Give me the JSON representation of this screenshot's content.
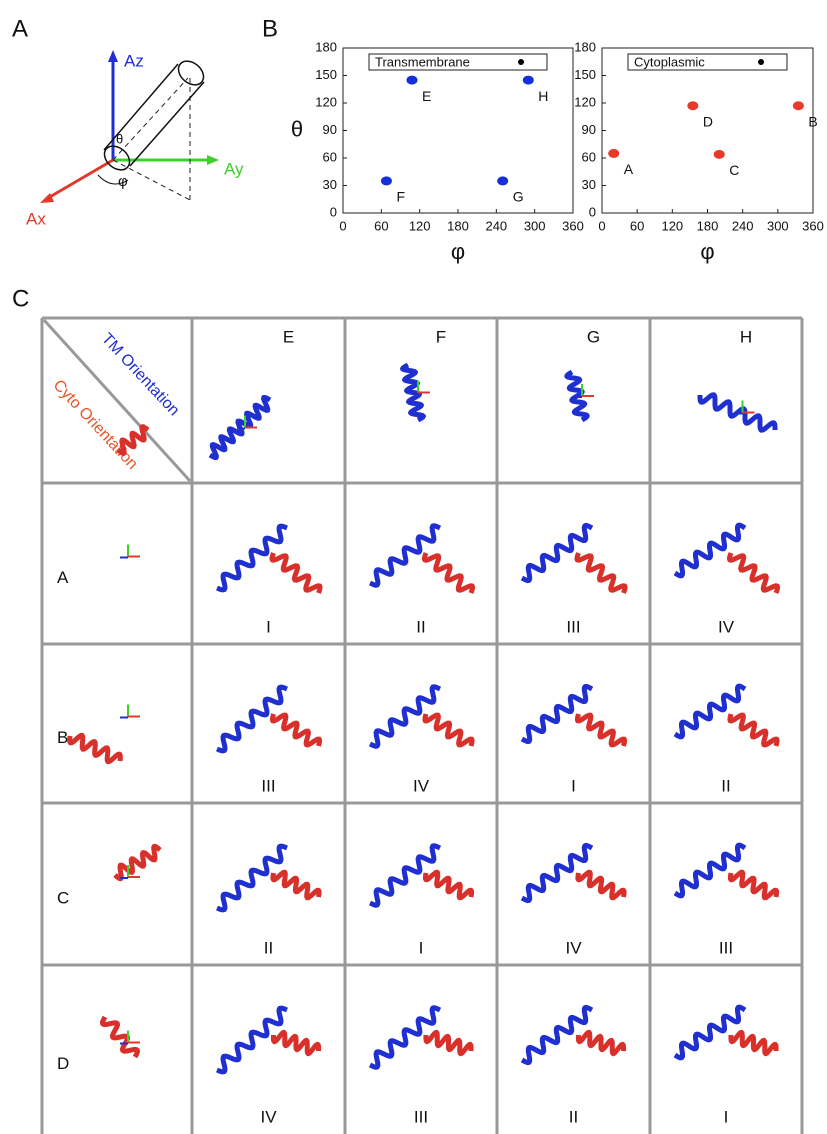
{
  "panels": [
    "A",
    "B",
    "C"
  ],
  "diagram": {
    "axis_labels": [
      "Az",
      "Ay",
      "Ax"
    ],
    "angle_labels": [
      "θ",
      "φ"
    ]
  },
  "chart_data": [
    {
      "type": "scatter",
      "x_label": "φ",
      "y_label": "θ",
      "xlim": [
        0,
        360
      ],
      "xticks": [
        0,
        60,
        120,
        180,
        240,
        300,
        360
      ],
      "ylim": [
        0,
        180
      ],
      "yticks": [
        0,
        30,
        60,
        90,
        120,
        150,
        180
      ],
      "legend": "top",
      "series": [
        {
          "name": "Transmembrane",
          "color": "#1530d8",
          "x": [
            108,
            68,
            250,
            290
          ],
          "values": [
            145,
            35,
            35,
            145
          ],
          "point_labels": [
            "E",
            "F",
            "G",
            "H"
          ]
        }
      ]
    },
    {
      "type": "scatter",
      "x_label": "φ",
      "y_label": null,
      "xlim": [
        0,
        360
      ],
      "xticks": [
        0,
        60,
        120,
        180,
        240,
        300,
        360
      ],
      "ylim": [
        0,
        180
      ],
      "yticks": [
        0,
        30,
        60,
        90,
        120,
        150,
        180
      ],
      "legend": "top",
      "series": [
        {
          "name": "Cytoplasmic",
          "color": "#e8392a",
          "x": [
            20,
            155,
            200,
            335
          ],
          "values": [
            65,
            117,
            64,
            117
          ],
          "point_labels": [
            "A",
            "D",
            "C",
            "B"
          ]
        }
      ]
    }
  ],
  "grid": {
    "header_top": "TM Orientation",
    "header_left": "Cyto Orientation",
    "columns": [
      "E",
      "F",
      "G",
      "H"
    ],
    "rows": [
      {
        "label": "A",
        "cells": [
          "I",
          "II",
          "III",
          "IV"
        ]
      },
      {
        "label": "B",
        "cells": [
          "III",
          "IV",
          "I",
          "II"
        ]
      },
      {
        "label": "C",
        "cells": [
          "II",
          "I",
          "IV",
          "III"
        ]
      },
      {
        "label": "D",
        "cells": [
          "IV",
          "III",
          "II",
          "I"
        ]
      }
    ]
  }
}
